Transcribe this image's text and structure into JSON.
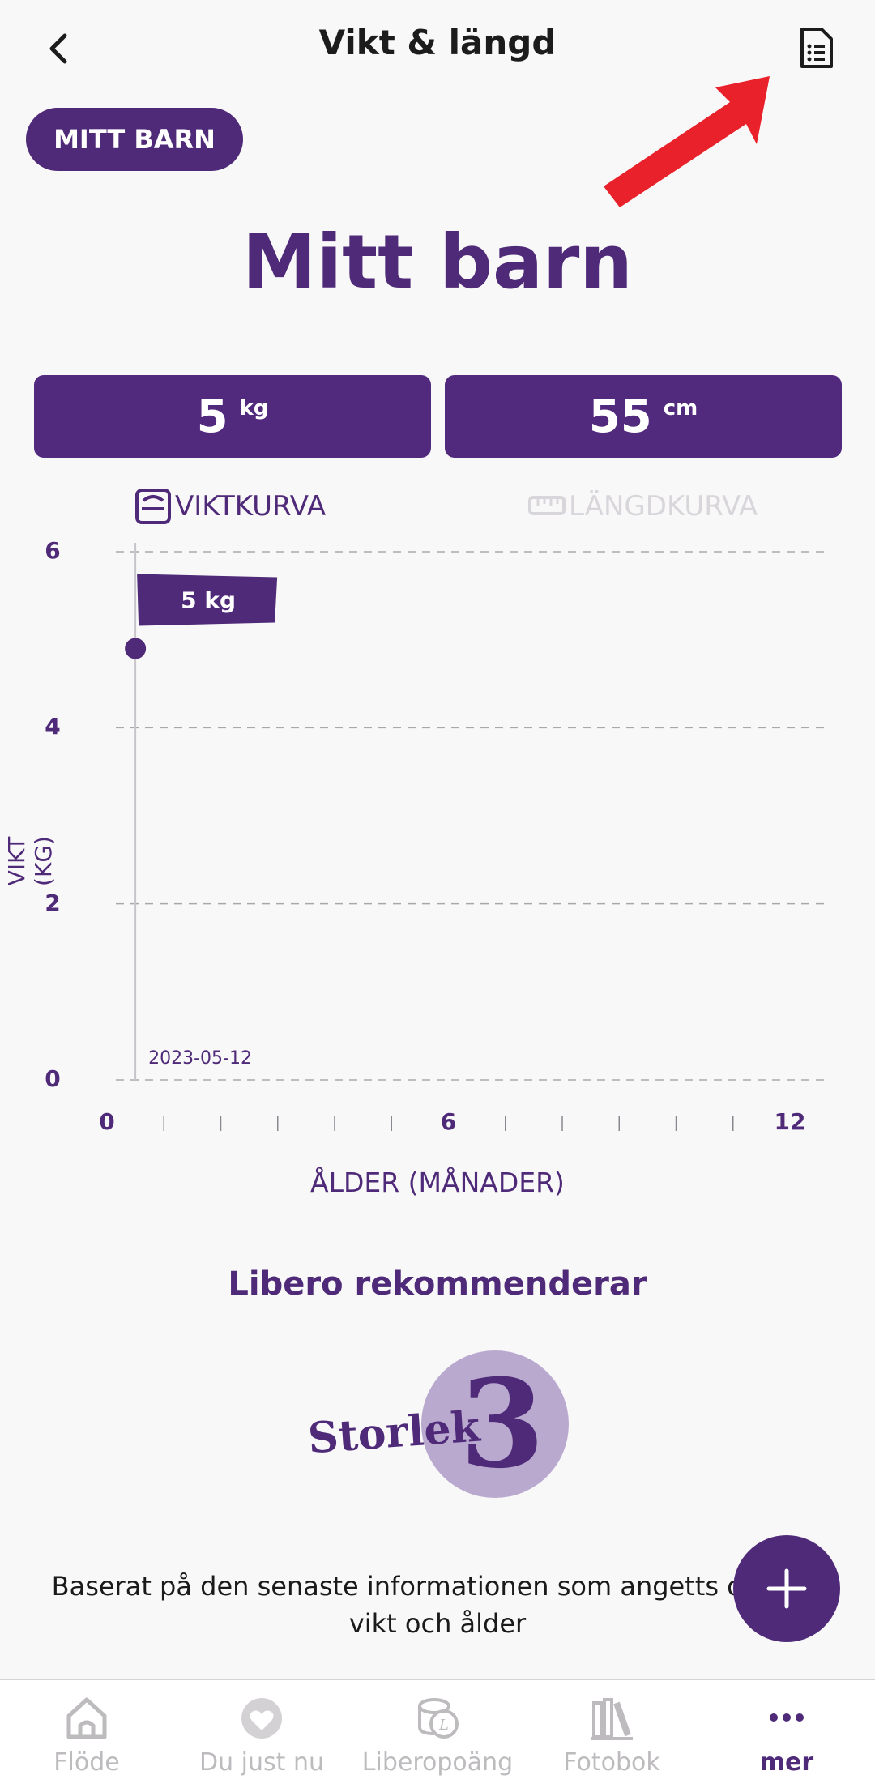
{
  "header": {
    "title": "Vikt & längd"
  },
  "chip": {
    "label": "MITT BARN"
  },
  "main": {
    "title": "Mitt barn",
    "weight": {
      "value": "5",
      "unit": "kg"
    },
    "length": {
      "value": "55",
      "unit": "cm"
    }
  },
  "tabs": [
    {
      "label": "VIKTKURVA",
      "active": true,
      "icon": "scale-icon"
    },
    {
      "label": "LÄNGDKURVA",
      "active": false,
      "icon": "ruler-icon"
    }
  ],
  "chart_data": {
    "type": "scatter",
    "title": "",
    "xlabel": "ÅLDER (MÅNADER)",
    "ylabel": "VIKT (KG)",
    "xlim": [
      0,
      12
    ],
    "ylim": [
      0,
      6
    ],
    "x_tick_labels": [
      "0",
      "6",
      "12"
    ],
    "y_tick_labels": [
      "0",
      "2",
      "4",
      "6"
    ],
    "grid": true,
    "points": [
      {
        "x": 0.5,
        "y": 4.9,
        "label": "5 kg",
        "date": "2023-05-12"
      }
    ]
  },
  "recommendation": {
    "title": "Libero rekommenderar",
    "size_word": "Storlek",
    "size_value": "3",
    "description": "Baserat på den senaste informationen som angetts o barns vikt och ålder"
  },
  "nav": [
    {
      "label": "Flöde",
      "icon": "home-icon"
    },
    {
      "label": "Du just nu",
      "icon": "heart-icon"
    },
    {
      "label": "Liberopoäng",
      "icon": "coins-icon"
    },
    {
      "label": "Fotobok",
      "icon": "books-icon"
    },
    {
      "label": "mer",
      "icon": "more-icon",
      "active": true
    }
  ],
  "colors": {
    "primary": "#4e2a78",
    "accent_arrow": "#e8212a",
    "size_circle": "#b9a9cf"
  }
}
